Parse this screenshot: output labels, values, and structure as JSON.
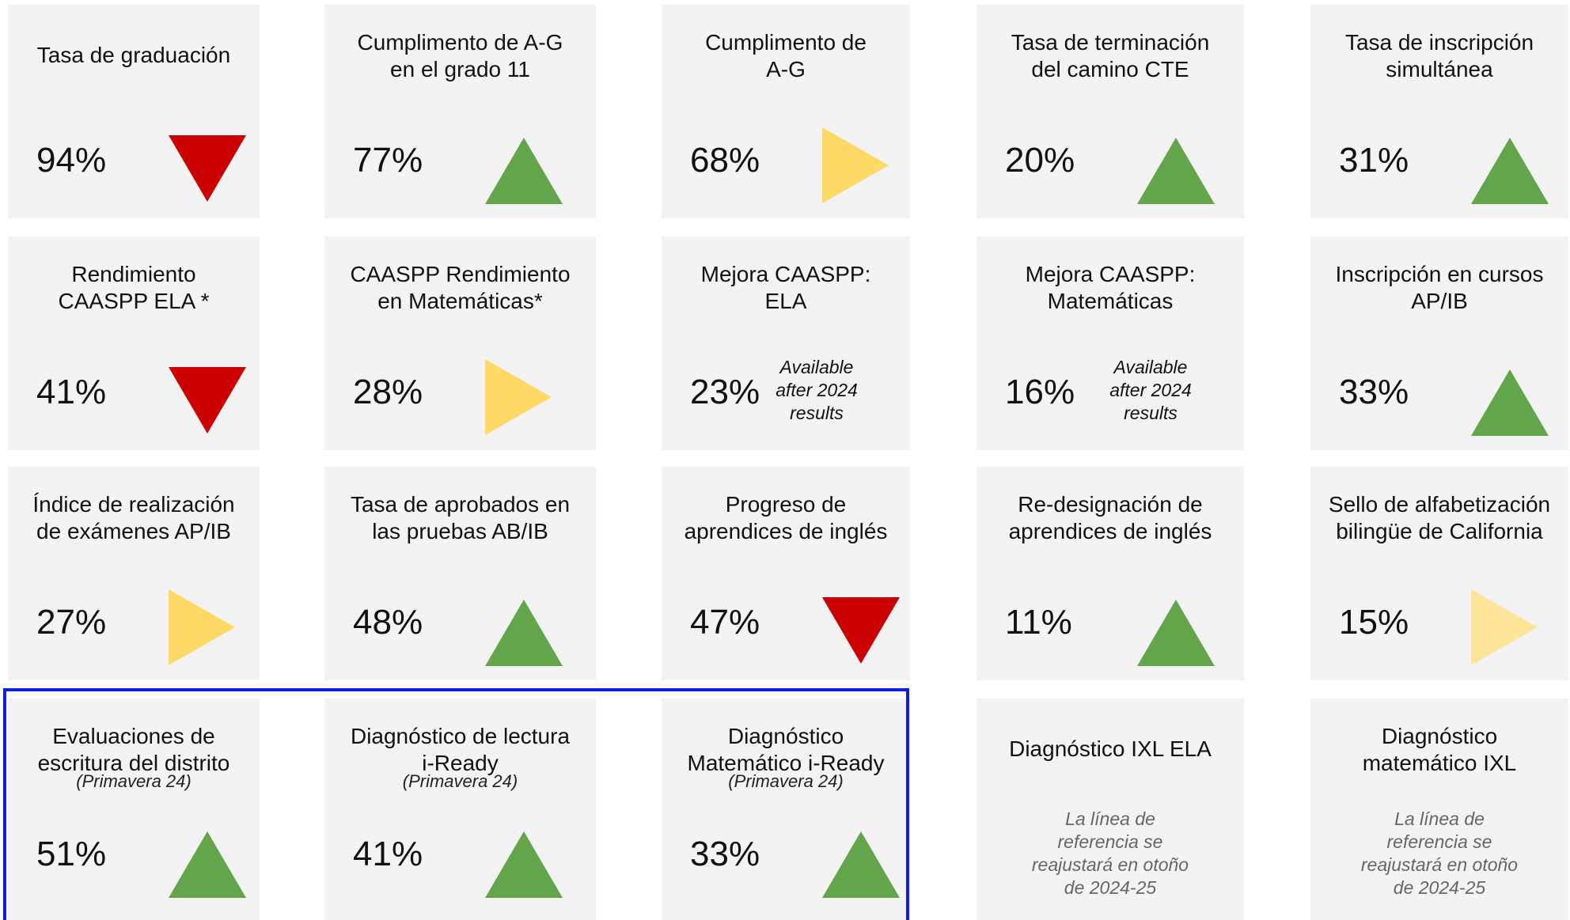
{
  "cards": [
    {
      "title": [
        "Tasa de graduación"
      ],
      "value": "94%",
      "indicator": "down",
      "color": "#cc0000"
    },
    {
      "title": [
        "Cumplimento de A-G",
        "en el grado 11"
      ],
      "value": "77%",
      "indicator": "up",
      "color": "#63a54b"
    },
    {
      "title": [
        "Cumplimento de",
        "A-G"
      ],
      "value": "68%",
      "indicator": "right",
      "color": "#ffd966"
    },
    {
      "title": [
        "Tasa de terminación",
        "del camino CTE"
      ],
      "value": "20%",
      "indicator": "up",
      "color": "#63a54b"
    },
    {
      "title": [
        "Tasa de inscripción",
        "simultánea"
      ],
      "value": "31%",
      "indicator": "up",
      "color": "#63a54b"
    },
    {
      "title": [
        "Rendimiento",
        "CAASPP ELA *"
      ],
      "value": "41%",
      "indicator": "down",
      "color": "#cc0000"
    },
    {
      "title": [
        "CAASPP Rendimiento",
        "en Matemáticas*"
      ],
      "value": "28%",
      "indicator": "right",
      "color": "#ffd966"
    },
    {
      "title": [
        "Mejora CAASPP:",
        "ELA"
      ],
      "value": "23%",
      "note": [
        "Available",
        "after 2024",
        "results"
      ]
    },
    {
      "title": [
        "Mejora CAASPP:",
        "Matemáticas"
      ],
      "value": "16%",
      "note": [
        "Available",
        "after 2024",
        "results"
      ]
    },
    {
      "title": [
        "Inscripción en cursos",
        "AP/IB"
      ],
      "value": "33%",
      "indicator": "up",
      "color": "#63a54b"
    },
    {
      "title": [
        "Índice de realización",
        "de exámenes AP/IB"
      ],
      "value": "27%",
      "indicator": "right",
      "color": "#ffd966"
    },
    {
      "title": [
        "Tasa de aprobados en",
        "las pruebas AB/IB"
      ],
      "value": "48%",
      "indicator": "up",
      "color": "#63a54b"
    },
    {
      "title": [
        "Progreso de",
        "aprendices de inglés"
      ],
      "value": "47%",
      "indicator": "down",
      "color": "#cc0000"
    },
    {
      "title": [
        "Re-designación de",
        "aprendices de inglés"
      ],
      "value": "11%",
      "indicator": "up",
      "color": "#63a54b"
    },
    {
      "title": [
        "Sello de alfabetización",
        "bilingüe de California"
      ],
      "value": "15%",
      "indicator": "right",
      "color": "#ffe599"
    },
    {
      "title": [
        "Evaluaciones de",
        "escritura del distrito"
      ],
      "subtitle": "(Primavera 24)",
      "value": "51%",
      "indicator": "up",
      "color": "#63a54b"
    },
    {
      "title": [
        "Diagnóstico de lectura",
        "i-Ready"
      ],
      "subtitle": "(Primavera 24)",
      "value": "41%",
      "indicator": "up",
      "color": "#63a54b"
    },
    {
      "title": [
        "Diagnóstico",
        "Matemático i-Ready"
      ],
      "subtitle": "(Primavera 24)",
      "value": "33%",
      "indicator": "up",
      "color": "#63a54b"
    },
    {
      "title": [
        "Diagnóstico IXL ELA"
      ],
      "baseline_note": [
        "La línea de",
        "referencia se",
        "reajustará en otoño",
        "de 2024-25"
      ]
    },
    {
      "title": [
        "Diagnóstico",
        "matemático IXL"
      ],
      "baseline_note": [
        "La línea de",
        "referencia se",
        "reajustará en otoño",
        "de 2024-25"
      ]
    }
  ]
}
